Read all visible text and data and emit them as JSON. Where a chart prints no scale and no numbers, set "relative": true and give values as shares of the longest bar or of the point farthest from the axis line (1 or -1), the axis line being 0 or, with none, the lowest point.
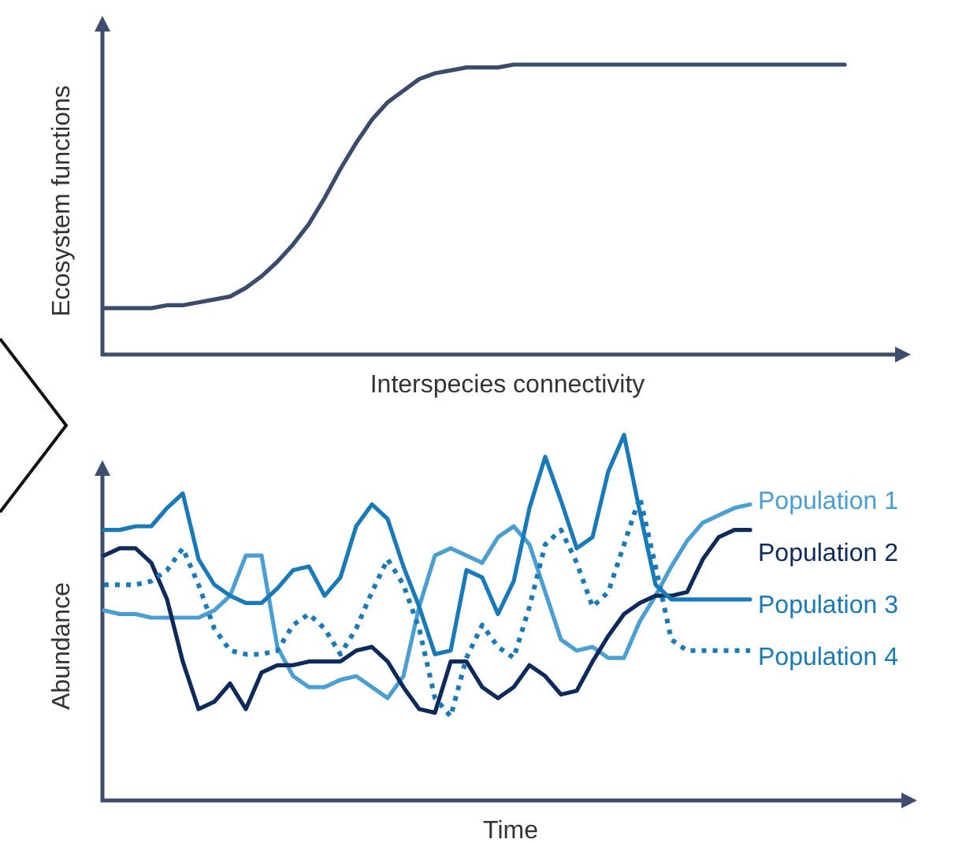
{
  "chart_data": [
    {
      "type": "line",
      "ylabel": "Ecosystem functions",
      "xlabel": "Interspecies connectivity",
      "relative": true,
      "categories": [
        null,
        null,
        null,
        null,
        null,
        null,
        null,
        null,
        null,
        null,
        null,
        null,
        null,
        null,
        null,
        null,
        null,
        null,
        null,
        null,
        null,
        null,
        null,
        null,
        null,
        null,
        null,
        null,
        null,
        null,
        null,
        null,
        null,
        null,
        null,
        null,
        null,
        null,
        null,
        null,
        null,
        null,
        null,
        null,
        null,
        null,
        null,
        null
      ],
      "series": [
        {
          "color": "#3b4b6b",
          "values": [
            0.16,
            0.16,
            0.16,
            0.16,
            0.17,
            0.17,
            0.18,
            0.19,
            0.2,
            0.23,
            0.27,
            0.32,
            0.38,
            0.45,
            0.54,
            0.64,
            0.73,
            0.81,
            0.87,
            0.91,
            0.95,
            0.97,
            0.98,
            0.99,
            0.99,
            0.99,
            1,
            1,
            1,
            1,
            1,
            1,
            1,
            1,
            1,
            1,
            1,
            1,
            1,
            1,
            1,
            1,
            1,
            1,
            1,
            1,
            1,
            1
          ]
        }
      ]
    },
    {
      "type": "line",
      "ylabel": "Abundance",
      "xlabel": "Time",
      "relative": true,
      "categories": [
        null,
        null,
        null,
        null,
        null,
        null,
        null,
        null,
        null,
        null,
        null,
        null,
        null,
        null,
        null,
        null,
        null,
        null,
        null,
        null,
        null,
        null,
        null,
        null,
        null,
        null,
        null,
        null,
        null,
        null,
        null,
        null,
        null,
        null,
        null,
        null,
        null,
        null,
        null,
        null,
        null,
        null
      ],
      "series": [
        {
          "name": "Population 1",
          "color": "#4a9fd0",
          "values": [
            0.52,
            0.51,
            0.51,
            0.5,
            0.5,
            0.5,
            0.5,
            0.52,
            0.56,
            0.67,
            0.67,
            0.42,
            0.34,
            0.31,
            0.31,
            0.33,
            0.34,
            0.31,
            0.28,
            0.34,
            0.53,
            0.67,
            0.69,
            0.67,
            0.65,
            0.72,
            0.75,
            0.7,
            0.57,
            0.44,
            0.41,
            0.42,
            0.39,
            0.39,
            0.49,
            0.56,
            0.64,
            0.71,
            0.76,
            0.78,
            0.8,
            0.81
          ]
        },
        {
          "name": "Population 2",
          "color": "#0d2a5a",
          "values": [
            0.67,
            0.69,
            0.69,
            0.65,
            0.55,
            0.38,
            0.25,
            0.27,
            0.32,
            0.25,
            0.35,
            0.37,
            0.37,
            0.38,
            0.38,
            0.38,
            0.41,
            0.42,
            0.38,
            0.31,
            0.25,
            0.24,
            0.38,
            0.38,
            0.31,
            0.28,
            0.31,
            0.37,
            0.34,
            0.29,
            0.3,
            0.38,
            0.45,
            0.51,
            0.54,
            0.56,
            0.56,
            0.57,
            0.66,
            0.72,
            0.74,
            0.74
          ]
        },
        {
          "name": "Population 3",
          "color": "#1a7ab8",
          "values": [
            0.74,
            0.74,
            0.75,
            0.75,
            0.8,
            0.84,
            0.66,
            0.59,
            0.56,
            0.54,
            0.54,
            0.58,
            0.63,
            0.64,
            0.56,
            0.61,
            0.75,
            0.81,
            0.77,
            0.64,
            0.53,
            0.4,
            0.41,
            0.63,
            0.61,
            0.51,
            0.6,
            0.8,
            0.94,
            0.82,
            0.69,
            0.72,
            0.9,
            1,
            0.79,
            0.59,
            0.55,
            0.55,
            0.55,
            0.55,
            0.55,
            0.55
          ]
        },
        {
          "name": "Population 4",
          "color": "#1a7ab8",
          "line_style": "dotted",
          "values": [
            0.59,
            0.59,
            0.59,
            0.6,
            0.63,
            0.69,
            0.59,
            0.47,
            0.41,
            0.4,
            0.4,
            0.41,
            0.48,
            0.51,
            0.47,
            0.4,
            0.47,
            0.57,
            0.66,
            0.59,
            0.47,
            0.28,
            0.23,
            0.39,
            0.48,
            0.42,
            0.39,
            0.53,
            0.7,
            0.74,
            0.65,
            0.53,
            0.57,
            0.7,
            0.83,
            0.64,
            0.44,
            0.41,
            0.41,
            0.41,
            0.41,
            0.41
          ]
        }
      ]
    }
  ]
}
